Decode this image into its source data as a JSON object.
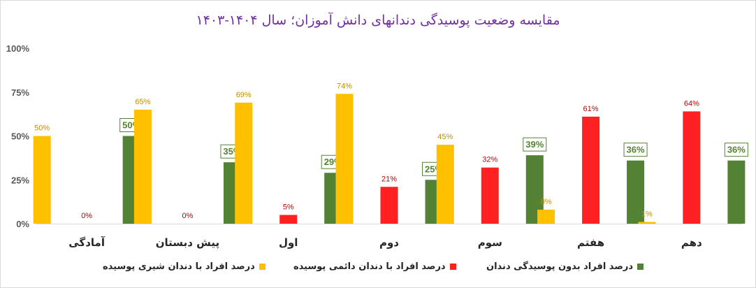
{
  "chart_data": {
    "type": "bar",
    "title": "مقایسه وضعیت پوسیدگی دندانهای دانش آموزان؛ سال ۱۴۰۴-۱۴۰۳",
    "categories": [
      "آمادگی",
      "پیش دبستان",
      "اول",
      "دوم",
      "سوم",
      "هفتم",
      "دهم"
    ],
    "series": [
      {
        "name": "درصد افراد با دندان شیری پوسیده",
        "color": "#ffc000",
        "label_color": "#bf8f00",
        "label_style": "plain",
        "values": [
          50,
          65,
          69,
          74,
          45,
          8,
          1
        ]
      },
      {
        "name": "درصد افراد با دندان دائمی پوسیده",
        "color": "#ff2121",
        "label_color": "#c00000",
        "label_style": "plain",
        "values": [
          0,
          0,
          5,
          21,
          32,
          61,
          64
        ]
      },
      {
        "name": "درصد افراد بدون پوسیدگی دندان",
        "color": "#548235",
        "label_color": "#548235",
        "label_style": "boxed",
        "values": [
          50,
          35,
          29,
          25,
          39,
          36,
          36
        ]
      }
    ],
    "yticks": [
      "0%",
      "25%",
      "50%",
      "75%",
      "100%"
    ],
    "ylim": [
      0,
      100
    ],
    "ylabel": "",
    "xlabel": "",
    "grid": false,
    "legend": "bottom"
  }
}
